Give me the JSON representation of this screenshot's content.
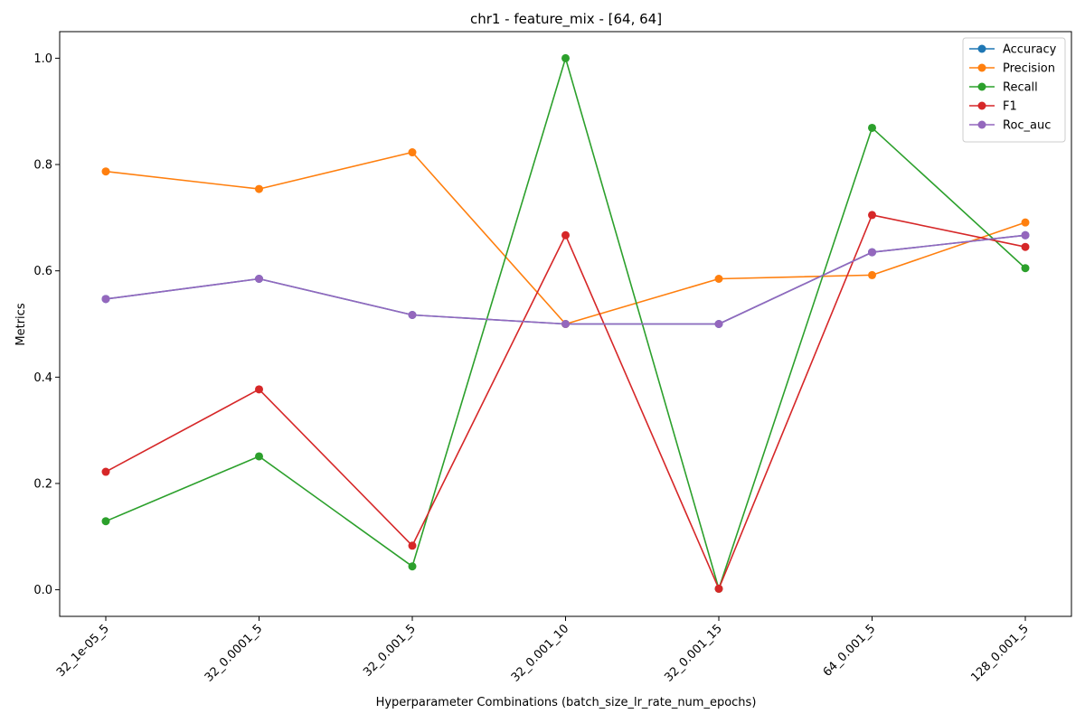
{
  "chart_data": {
    "type": "line",
    "title": "chr1 - feature_mix - [64, 64]",
    "xlabel": "Hyperparameter Combinations (batch_size_lr_rate_num_epochs)",
    "ylabel": "Metrics",
    "categories": [
      "32_1e-05_5",
      "32_0.0001_5",
      "32_0.001_5",
      "32_0.001_10",
      "32_0.001_15",
      "64_0.001_5",
      "128_0.001_5"
    ],
    "ylim": [
      -0.05,
      1.05
    ],
    "yticks": [
      "0.0",
      "0.2",
      "0.4",
      "0.6",
      "0.8",
      "1.0"
    ],
    "grid": false,
    "legend_position": "top-right",
    "series": [
      {
        "name": "Accuracy",
        "color": "#1f77b4",
        "values": [
          0.547,
          0.585,
          0.517,
          0.5,
          0.5,
          0.635,
          0.667
        ]
      },
      {
        "name": "Precision",
        "color": "#ff7f0e",
        "values": [
          0.787,
          0.754,
          0.823,
          0.5,
          0.585,
          0.592,
          0.691
        ]
      },
      {
        "name": "Recall",
        "color": "#2ca02c",
        "values": [
          0.129,
          0.251,
          0.044,
          1.0,
          0.002,
          0.869,
          0.605
        ]
      },
      {
        "name": "F1",
        "color": "#d62728",
        "values": [
          0.222,
          0.377,
          0.083,
          0.667,
          0.002,
          0.705,
          0.645
        ]
      },
      {
        "name": "Roc_auc",
        "color": "#9467bd",
        "values": [
          0.547,
          0.585,
          0.517,
          0.5,
          0.5,
          0.635,
          0.667
        ]
      }
    ]
  }
}
